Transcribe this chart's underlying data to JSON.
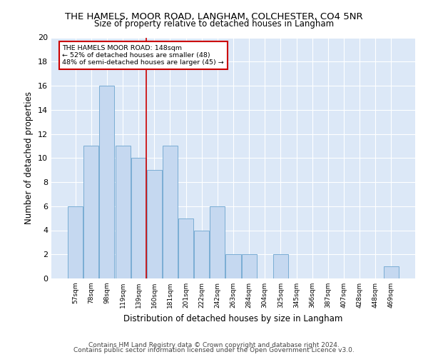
{
  "title": "THE HAMELS, MOOR ROAD, LANGHAM, COLCHESTER, CO4 5NR",
  "subtitle": "Size of property relative to detached houses in Langham",
  "xlabel": "Distribution of detached houses by size in Langham",
  "ylabel": "Number of detached properties",
  "bar_color": "#c5d8f0",
  "bar_edge_color": "#7aadd4",
  "background_color": "#dce8f7",
  "grid_color": "#ffffff",
  "categories": [
    "57sqm",
    "78sqm",
    "98sqm",
    "119sqm",
    "139sqm",
    "160sqm",
    "181sqm",
    "201sqm",
    "222sqm",
    "242sqm",
    "263sqm",
    "284sqm",
    "304sqm",
    "325sqm",
    "345sqm",
    "366sqm",
    "387sqm",
    "407sqm",
    "428sqm",
    "448sqm",
    "469sqm"
  ],
  "values": [
    6,
    11,
    16,
    11,
    10,
    9,
    11,
    5,
    4,
    6,
    2,
    2,
    0,
    2,
    0,
    0,
    0,
    0,
    0,
    0,
    1
  ],
  "ylim": [
    0,
    20
  ],
  "yticks": [
    0,
    2,
    4,
    6,
    8,
    10,
    12,
    14,
    16,
    18,
    20
  ],
  "property_line_x": 4.47,
  "property_line_color": "#cc0000",
  "annotation_text": "THE HAMELS MOOR ROAD: 148sqm\n← 52% of detached houses are smaller (48)\n48% of semi-detached houses are larger (45) →",
  "annotation_box_color": "#cc0000",
  "footer_line1": "Contains HM Land Registry data © Crown copyright and database right 2024.",
  "footer_line2": "Contains public sector information licensed under the Open Government Licence v3.0.",
  "figwidth": 6.0,
  "figheight": 5.0,
  "dpi": 100
}
